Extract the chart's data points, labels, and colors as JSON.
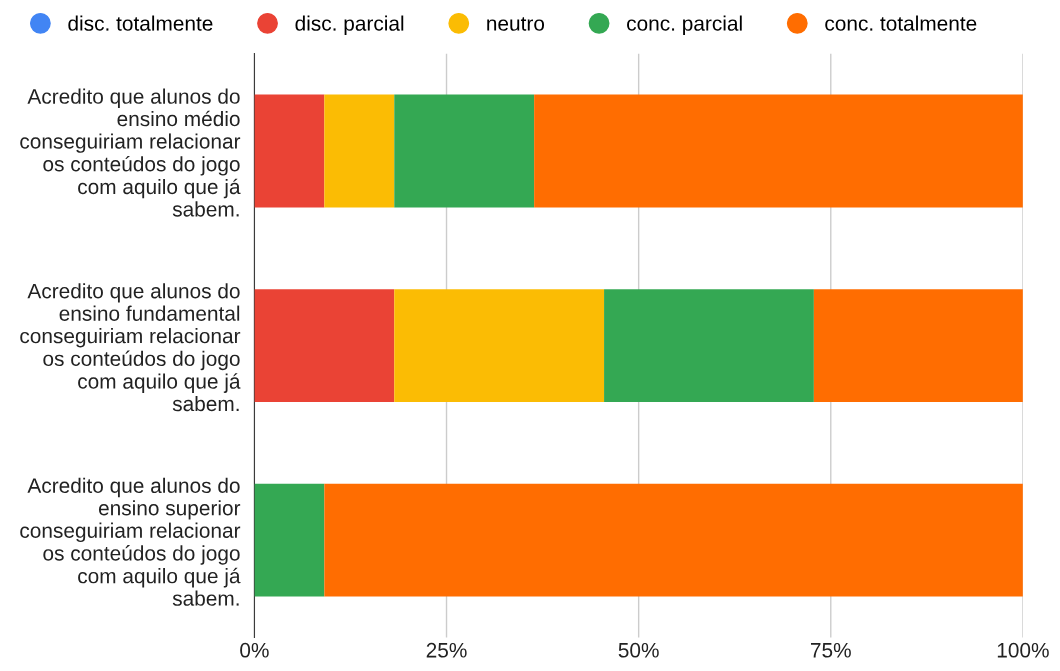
{
  "chart_data": {
    "type": "bar",
    "orientation": "horizontal",
    "stacked": true,
    "categories": [
      "Acredito que alunos do\nensino médio\nconseguiriam relacionar\nos conteúdos do jogo\ncom aquilo que já\nsabem.",
      "Acredito que alunos do\nensino fundamental\nconseguiriam relacionar\nos conteúdos do jogo\ncom aquilo que já\nsabem.",
      "Acredito que alunos do\nensino superior\nconseguiriam relacionar\nos conteúdos do jogo\ncom aquilo que já\nsabem."
    ],
    "series": [
      {
        "name": "disc. totalmente",
        "color": "#4285f4",
        "values": [
          0,
          0,
          0
        ]
      },
      {
        "name": "disc. parcial",
        "color": "#ea4335",
        "values": [
          9.1,
          18.2,
          0
        ]
      },
      {
        "name": "neutro",
        "color": "#fbbc04",
        "values": [
          9.1,
          27.3,
          0
        ]
      },
      {
        "name": "conc. parcial",
        "color": "#34a853",
        "values": [
          18.2,
          27.3,
          9.1
        ]
      },
      {
        "name": "conc. totalmente",
        "color": "#ff6d01",
        "values": [
          63.6,
          27.2,
          90.9
        ]
      }
    ],
    "xlim": [
      0,
      100
    ],
    "xticks": [
      {
        "value": 0,
        "label": "0%"
      },
      {
        "value": 25,
        "label": "25%"
      },
      {
        "value": 50,
        "label": "50%"
      },
      {
        "value": 75,
        "label": "75%"
      },
      {
        "value": 100,
        "label": "100%"
      }
    ],
    "grid": "x",
    "legend": "top"
  }
}
